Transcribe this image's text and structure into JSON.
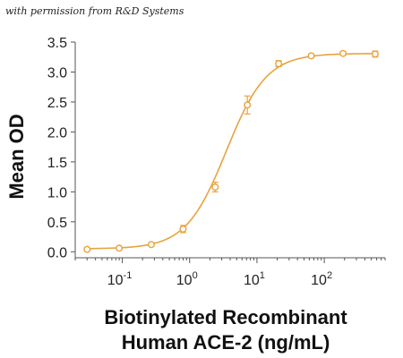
{
  "credit": "with permission from R&D Systems",
  "chart_data": {
    "type": "scatter",
    "xlabel_lines": [
      "Biotinylated Recombinant",
      "Human ACE-2 (ng/mL)"
    ],
    "ylabel": "Mean OD",
    "xscale": "log",
    "xlim": [
      0.02,
      800
    ],
    "ylim": [
      -0.1,
      3.5
    ],
    "yticks": [
      "0.0",
      "0.5",
      "1.0",
      "1.5",
      "2.0",
      "2.5",
      "3.0",
      "3.5"
    ],
    "xticks": [
      {
        "value": 0.1,
        "base": "10",
        "exp": "-1"
      },
      {
        "value": 1,
        "base": "10",
        "exp": "0"
      },
      {
        "value": 10,
        "base": "10",
        "exp": "1"
      },
      {
        "value": 100,
        "base": "10",
        "exp": "2"
      }
    ],
    "series": [
      {
        "x": [
          0.03,
          0.09,
          0.27,
          0.8,
          2.4,
          7.2,
          21,
          64,
          190,
          570
        ],
        "y": [
          0.04,
          0.06,
          0.12,
          0.38,
          1.08,
          2.45,
          3.14,
          3.27,
          3.31,
          3.3
        ],
        "err": [
          0.02,
          0.02,
          0.03,
          0.06,
          0.08,
          0.15,
          0.05,
          0.03,
          0.03,
          0.05
        ]
      }
    ],
    "fit": {
      "bottom": 0.05,
      "top": 3.31,
      "ec50": 3.5,
      "hill": 1.45
    },
    "color": "#E8A33D"
  }
}
